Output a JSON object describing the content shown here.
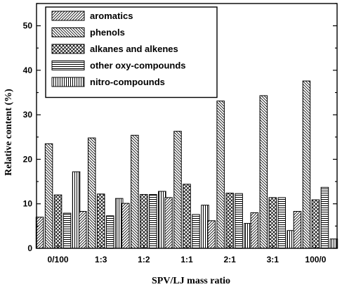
{
  "chart_data": {
    "type": "bar",
    "xlabel": "SPV/LJ mass ratio",
    "ylabel": "Relative content (%)",
    "ylim": [
      0,
      55
    ],
    "yticks": [
      0,
      10,
      20,
      30,
      40,
      50
    ],
    "grid": false,
    "legend_position": "top-left",
    "categories": [
      "0/100",
      "1:3",
      "1:2",
      "1:1",
      "2:1",
      "3:1",
      "100/0"
    ],
    "series": [
      {
        "name": "aromatics",
        "pattern": "diag-forward",
        "values": [
          7.0,
          8.3,
          10.1,
          11.4,
          6.2,
          8.0,
          8.3
        ]
      },
      {
        "name": "phenols",
        "pattern": "diag-back",
        "values": [
          23.5,
          24.8,
          25.4,
          26.3,
          33.1,
          34.3,
          37.6
        ]
      },
      {
        "name": "alkanes and alkenes",
        "pattern": "crosshatch",
        "values": [
          12.0,
          12.2,
          12.1,
          14.4,
          12.4,
          11.4,
          10.9
        ]
      },
      {
        "name": "other oxy-compounds",
        "pattern": "horizontal",
        "values": [
          7.9,
          7.3,
          12.1,
          7.6,
          12.3,
          11.4,
          13.7
        ]
      },
      {
        "name": "nitro-compounds",
        "pattern": "vertical",
        "values": [
          17.2,
          11.2,
          12.8,
          9.7,
          5.6,
          4.0,
          2.1
        ]
      }
    ]
  }
}
